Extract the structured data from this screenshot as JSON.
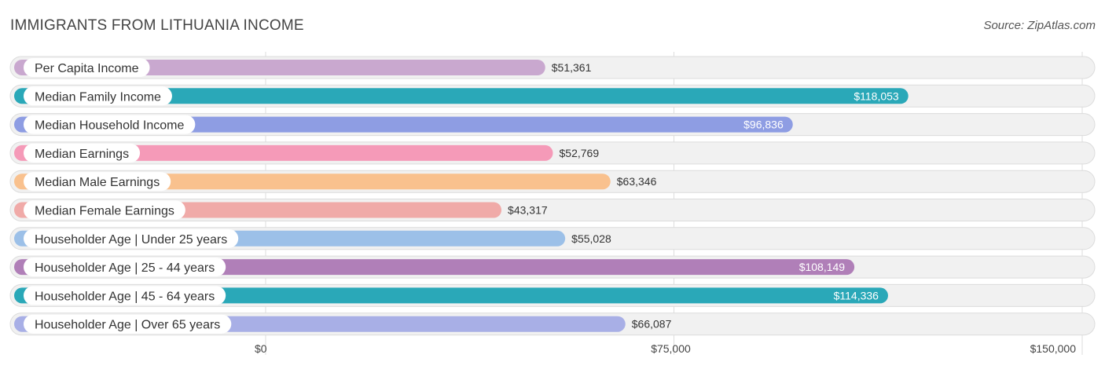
{
  "title": "IMMIGRANTS FROM LITHUANIA INCOME",
  "source": "Source: ZipAtlas.com",
  "chart_data": {
    "type": "bar",
    "orientation": "horizontal",
    "title": "IMMIGRANTS FROM LITHUANIA INCOME",
    "categories": [
      "Per Capita Income",
      "Median Family Income",
      "Median Household Income",
      "Median Earnings",
      "Median Male Earnings",
      "Median Female Earnings",
      "Householder Age | Under 25 years",
      "Householder Age | 25 - 44 years",
      "Householder Age | 45 - 64 years",
      "Householder Age | Over 65 years"
    ],
    "values": [
      51361,
      118053,
      96836,
      52769,
      63346,
      43317,
      55028,
      108149,
      114336,
      66087
    ],
    "value_labels": [
      "$51,361",
      "$118,053",
      "$96,836",
      "$52,769",
      "$63,346",
      "$43,317",
      "$55,028",
      "$108,149",
      "$114,336",
      "$66,087"
    ],
    "colors": [
      "#c9a8cf",
      "#2aa8b8",
      "#8e9de3",
      "#f59ab8",
      "#f9c18e",
      "#f0aaa8",
      "#9cc0e8",
      "#b07fb8",
      "#2aa8b8",
      "#a8afe6"
    ],
    "xlim": [
      0,
      150000
    ],
    "x_ticks": [
      0,
      75000,
      150000
    ],
    "x_tick_labels": [
      "$0",
      "$75,000",
      "$150,000"
    ],
    "grid": true,
    "legend": "none"
  }
}
